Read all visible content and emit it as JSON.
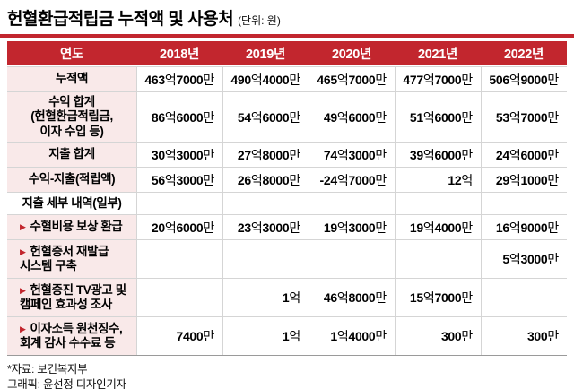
{
  "header": {
    "title": "헌혈환급적립금 누적액 및 사용처",
    "unit_label": "(단위: 원)"
  },
  "icons": {
    "row_arrow": "▶"
  },
  "chart_data": {
    "type": "table",
    "title": "헌혈환급적립금 누적액 및 사용처",
    "unit": "원",
    "columns": [
      "연도",
      "2018년",
      "2019년",
      "2020년",
      "2021년",
      "2022년"
    ],
    "rows": [
      {
        "label": "누적액",
        "arrow": false,
        "bg": "pink",
        "values": [
          "463억7000만",
          "490억4000만",
          "465억7000만",
          "477억7000만",
          "506억9000만"
        ]
      },
      {
        "label": "수익 합계\n(헌혈환급적립금,\n이자 수입 등)",
        "arrow": false,
        "bg": "pink",
        "values": [
          "86억6000만",
          "54억6000만",
          "49억6000만",
          "51억6000만",
          "53억7000만"
        ]
      },
      {
        "label": "지출 합계",
        "arrow": false,
        "bg": "pink",
        "values": [
          "30억3000만",
          "27억8000만",
          "74억3000만",
          "39억6000만",
          "24억6000만"
        ]
      },
      {
        "label": "수익-지출(적립액)",
        "arrow": false,
        "bg": "pink",
        "values": [
          "56억3000만",
          "26억8000만",
          "-24억7000만",
          "12억",
          "29억1000만"
        ]
      },
      {
        "label": "지출 세부 내역(일부)",
        "arrow": false,
        "bg": "white",
        "values": [
          "",
          "",
          "",
          "",
          ""
        ]
      },
      {
        "label": "수혈비용 보상 환급",
        "arrow": true,
        "bg": "pink",
        "values": [
          "20억6000만",
          "23억3000만",
          "19억3000만",
          "19억4000만",
          "16억9000만"
        ]
      },
      {
        "label": "헌혈증서 재발급\n시스템 구축",
        "arrow": true,
        "bg": "pink",
        "values": [
          "",
          "",
          "",
          "",
          "5억3000만"
        ]
      },
      {
        "label": "헌혈증진 TV광고 및\n캠페인 효과성 조사",
        "arrow": true,
        "bg": "pink",
        "values": [
          "",
          "1억",
          "46억8000만",
          "15억7000만",
          ""
        ]
      },
      {
        "label": "이자소득 원천징수,\n회계 감사 수수료 등",
        "arrow": true,
        "bg": "pink",
        "values": [
          "7400만",
          "1억",
          "1억4000만",
          "300만",
          "300만"
        ]
      }
    ]
  },
  "footer": {
    "source": "*자료: 보건복지부",
    "credit": "그래픽: 윤선정 디자인기자"
  },
  "colors": {
    "accent_red": "#c2262e",
    "label_pink": "#f9e9e9",
    "border_gray": "#d5d5d5",
    "header_text": "#ffffff"
  }
}
